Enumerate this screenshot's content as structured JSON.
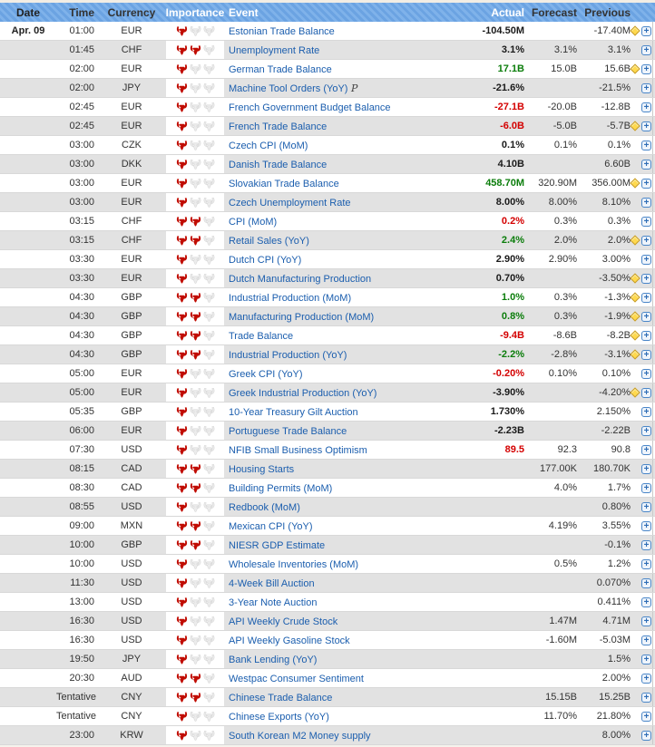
{
  "header": {
    "columns": [
      "Date",
      "Time",
      "Currency",
      "Importance",
      "Event",
      "Actual",
      "Forecast",
      "Previous"
    ]
  },
  "colors": {
    "header_blue": "#6ba3e2",
    "header_stripe": "#7fb2ea",
    "row_alt_gray": "#e2e2e2",
    "link_blue": "#1b5eae",
    "actual_positive_green": "#0b7d0b",
    "actual_negative_red": "#d40000",
    "bull_red": "#c00b00",
    "diamond_yellow": "#ffd94e"
  },
  "icons": {
    "importance": "bull-icon",
    "alert": "diamond-icon",
    "expand": "plus-icon"
  },
  "rows": [
    {
      "date": "Apr. 09",
      "time": "01:00",
      "currency": "EUR",
      "importance": 1,
      "event": "Estonian Trade Balance",
      "suffix": "",
      "actual": "-104.50M",
      "actual_color": "k",
      "forecast": "",
      "previous": "-17.40M",
      "alert": true
    },
    {
      "date": "",
      "time": "01:45",
      "currency": "CHF",
      "importance": 2,
      "event": "Unemployment Rate",
      "suffix": "",
      "actual": "3.1%",
      "actual_color": "k",
      "forecast": "3.1%",
      "previous": "3.1%",
      "alert": false
    },
    {
      "date": "",
      "time": "02:00",
      "currency": "EUR",
      "importance": 1,
      "event": "German Trade Balance",
      "suffix": "",
      "actual": "17.1B",
      "actual_color": "g",
      "forecast": "15.0B",
      "previous": "15.6B",
      "alert": true
    },
    {
      "date": "",
      "time": "02:00",
      "currency": "JPY",
      "importance": 1,
      "event": "Machine Tool Orders (YoY)",
      "suffix": "P",
      "actual": "-21.6%",
      "actual_color": "k",
      "forecast": "",
      "previous": "-21.5%",
      "alert": false
    },
    {
      "date": "",
      "time": "02:45",
      "currency": "EUR",
      "importance": 1,
      "event": "French Government Budget Balance",
      "suffix": "",
      "actual": "-27.1B",
      "actual_color": "r",
      "forecast": "-20.0B",
      "previous": "-12.8B",
      "alert": false
    },
    {
      "date": "",
      "time": "02:45",
      "currency": "EUR",
      "importance": 1,
      "event": "French Trade Balance",
      "suffix": "",
      "actual": "-6.0B",
      "actual_color": "r",
      "forecast": "-5.0B",
      "previous": "-5.7B",
      "alert": true
    },
    {
      "date": "",
      "time": "03:00",
      "currency": "CZK",
      "importance": 1,
      "event": "Czech CPI (MoM)",
      "suffix": "",
      "actual": "0.1%",
      "actual_color": "k",
      "forecast": "0.1%",
      "previous": "0.1%",
      "alert": false
    },
    {
      "date": "",
      "time": "03:00",
      "currency": "DKK",
      "importance": 1,
      "event": "Danish Trade Balance",
      "suffix": "",
      "actual": "4.10B",
      "actual_color": "k",
      "forecast": "",
      "previous": "6.60B",
      "alert": false
    },
    {
      "date": "",
      "time": "03:00",
      "currency": "EUR",
      "importance": 1,
      "event": "Slovakian Trade Balance",
      "suffix": "",
      "actual": "458.70M",
      "actual_color": "g",
      "forecast": "320.90M",
      "previous": "356.00M",
      "alert": true
    },
    {
      "date": "",
      "time": "03:00",
      "currency": "EUR",
      "importance": 1,
      "event": "Czech Unemployment Rate",
      "suffix": "",
      "actual": "8.00%",
      "actual_color": "k",
      "forecast": "8.00%",
      "previous": "8.10%",
      "alert": false
    },
    {
      "date": "",
      "time": "03:15",
      "currency": "CHF",
      "importance": 2,
      "event": "CPI (MoM)",
      "suffix": "",
      "actual": "0.2%",
      "actual_color": "r",
      "forecast": "0.3%",
      "previous": "0.3%",
      "alert": false
    },
    {
      "date": "",
      "time": "03:15",
      "currency": "CHF",
      "importance": 2,
      "event": "Retail Sales (YoY)",
      "suffix": "",
      "actual": "2.4%",
      "actual_color": "g",
      "forecast": "2.0%",
      "previous": "2.0%",
      "alert": true
    },
    {
      "date": "",
      "time": "03:30",
      "currency": "EUR",
      "importance": 1,
      "event": "Dutch CPI (YoY)",
      "suffix": "",
      "actual": "2.90%",
      "actual_color": "k",
      "forecast": "2.90%",
      "previous": "3.00%",
      "alert": false
    },
    {
      "date": "",
      "time": "03:30",
      "currency": "EUR",
      "importance": 1,
      "event": "Dutch Manufacturing Production",
      "suffix": "",
      "actual": "0.70%",
      "actual_color": "k",
      "forecast": "",
      "previous": "-3.50%",
      "alert": true
    },
    {
      "date": "",
      "time": "04:30",
      "currency": "GBP",
      "importance": 2,
      "event": "Industrial Production (MoM)",
      "suffix": "",
      "actual": "1.0%",
      "actual_color": "g",
      "forecast": "0.3%",
      "previous": "-1.3%",
      "alert": true
    },
    {
      "date": "",
      "time": "04:30",
      "currency": "GBP",
      "importance": 2,
      "event": "Manufacturing Production (MoM)",
      "suffix": "",
      "actual": "0.8%",
      "actual_color": "g",
      "forecast": "0.3%",
      "previous": "-1.9%",
      "alert": true
    },
    {
      "date": "",
      "time": "04:30",
      "currency": "GBP",
      "importance": 2,
      "event": "Trade Balance",
      "suffix": "",
      "actual": "-9.4B",
      "actual_color": "r",
      "forecast": "-8.6B",
      "previous": "-8.2B",
      "alert": true
    },
    {
      "date": "",
      "time": "04:30",
      "currency": "GBP",
      "importance": 2,
      "event": "Industrial Production (YoY)",
      "suffix": "",
      "actual": "-2.2%",
      "actual_color": "g",
      "forecast": "-2.8%",
      "previous": "-3.1%",
      "alert": true
    },
    {
      "date": "",
      "time": "05:00",
      "currency": "EUR",
      "importance": 1,
      "event": "Greek CPI (YoY)",
      "suffix": "",
      "actual": "-0.20%",
      "actual_color": "r",
      "forecast": "0.10%",
      "previous": "0.10%",
      "alert": false
    },
    {
      "date": "",
      "time": "05:00",
      "currency": "EUR",
      "importance": 1,
      "event": "Greek Industrial Production (YoY)",
      "suffix": "",
      "actual": "-3.90%",
      "actual_color": "k",
      "forecast": "",
      "previous": "-4.20%",
      "alert": true
    },
    {
      "date": "",
      "time": "05:35",
      "currency": "GBP",
      "importance": 1,
      "event": "10-Year Treasury Gilt Auction",
      "suffix": "",
      "actual": "1.730%",
      "actual_color": "k",
      "forecast": "",
      "previous": "2.150%",
      "alert": false
    },
    {
      "date": "",
      "time": "06:00",
      "currency": "EUR",
      "importance": 1,
      "event": "Portuguese Trade Balance",
      "suffix": "",
      "actual": "-2.23B",
      "actual_color": "k",
      "forecast": "",
      "previous": "-2.22B",
      "alert": false
    },
    {
      "date": "",
      "time": "07:30",
      "currency": "USD",
      "importance": 1,
      "event": "NFIB Small Business Optimism",
      "suffix": "",
      "actual": "89.5",
      "actual_color": "r",
      "forecast": "92.3",
      "previous": "90.8",
      "alert": false
    },
    {
      "date": "",
      "time": "08:15",
      "currency": "CAD",
      "importance": 2,
      "event": "Housing Starts",
      "suffix": "",
      "actual": "",
      "actual_color": "k",
      "forecast": "177.00K",
      "previous": "180.70K",
      "alert": false
    },
    {
      "date": "",
      "time": "08:30",
      "currency": "CAD",
      "importance": 2,
      "event": "Building Permits (MoM)",
      "suffix": "",
      "actual": "",
      "actual_color": "k",
      "forecast": "4.0%",
      "previous": "1.7%",
      "alert": false
    },
    {
      "date": "",
      "time": "08:55",
      "currency": "USD",
      "importance": 1,
      "event": "Redbook (MoM)",
      "suffix": "",
      "actual": "",
      "actual_color": "k",
      "forecast": "",
      "previous": "0.80%",
      "alert": false
    },
    {
      "date": "",
      "time": "09:00",
      "currency": "MXN",
      "importance": 2,
      "event": "Mexican CPI (YoY)",
      "suffix": "",
      "actual": "",
      "actual_color": "k",
      "forecast": "4.19%",
      "previous": "3.55%",
      "alert": false
    },
    {
      "date": "",
      "time": "10:00",
      "currency": "GBP",
      "importance": 2,
      "event": "NIESR GDP Estimate",
      "suffix": "",
      "actual": "",
      "actual_color": "k",
      "forecast": "",
      "previous": "-0.1%",
      "alert": false
    },
    {
      "date": "",
      "time": "10:00",
      "currency": "USD",
      "importance": 1,
      "event": "Wholesale Inventories (MoM)",
      "suffix": "",
      "actual": "",
      "actual_color": "k",
      "forecast": "0.5%",
      "previous": "1.2%",
      "alert": false
    },
    {
      "date": "",
      "time": "11:30",
      "currency": "USD",
      "importance": 1,
      "event": "4-Week Bill Auction",
      "suffix": "",
      "actual": "",
      "actual_color": "k",
      "forecast": "",
      "previous": "0.070%",
      "alert": false
    },
    {
      "date": "",
      "time": "13:00",
      "currency": "USD",
      "importance": 1,
      "event": "3-Year Note Auction",
      "suffix": "",
      "actual": "",
      "actual_color": "k",
      "forecast": "",
      "previous": "0.411%",
      "alert": false
    },
    {
      "date": "",
      "time": "16:30",
      "currency": "USD",
      "importance": 1,
      "event": "API Weekly Crude Stock",
      "suffix": "",
      "actual": "",
      "actual_color": "k",
      "forecast": "1.47M",
      "previous": "4.71M",
      "alert": false
    },
    {
      "date": "",
      "time": "16:30",
      "currency": "USD",
      "importance": 1,
      "event": "API Weekly Gasoline Stock",
      "suffix": "",
      "actual": "",
      "actual_color": "k",
      "forecast": "-1.60M",
      "previous": "-5.03M",
      "alert": false
    },
    {
      "date": "",
      "time": "19:50",
      "currency": "JPY",
      "importance": 1,
      "event": "Bank Lending (YoY)",
      "suffix": "",
      "actual": "",
      "actual_color": "k",
      "forecast": "",
      "previous": "1.5%",
      "alert": false
    },
    {
      "date": "",
      "time": "20:30",
      "currency": "AUD",
      "importance": 2,
      "event": "Westpac Consumer Sentiment",
      "suffix": "",
      "actual": "",
      "actual_color": "k",
      "forecast": "",
      "previous": "2.00%",
      "alert": false
    },
    {
      "date": "",
      "time": "Tentative",
      "currency": "CNY",
      "importance": 2,
      "event": "Chinese Trade Balance",
      "suffix": "",
      "actual": "",
      "actual_color": "k",
      "forecast": "15.15B",
      "previous": "15.25B",
      "alert": false
    },
    {
      "date": "",
      "time": "Tentative",
      "currency": "CNY",
      "importance": 1,
      "event": "Chinese Exports (YoY)",
      "suffix": "",
      "actual": "",
      "actual_color": "k",
      "forecast": "11.70%",
      "previous": "21.80%",
      "alert": false
    },
    {
      "date": "",
      "time": "23:00",
      "currency": "KRW",
      "importance": 1,
      "event": "South Korean M2 Money supply",
      "suffix": "",
      "actual": "",
      "actual_color": "k",
      "forecast": "",
      "previous": "8.00%",
      "alert": false
    }
  ]
}
